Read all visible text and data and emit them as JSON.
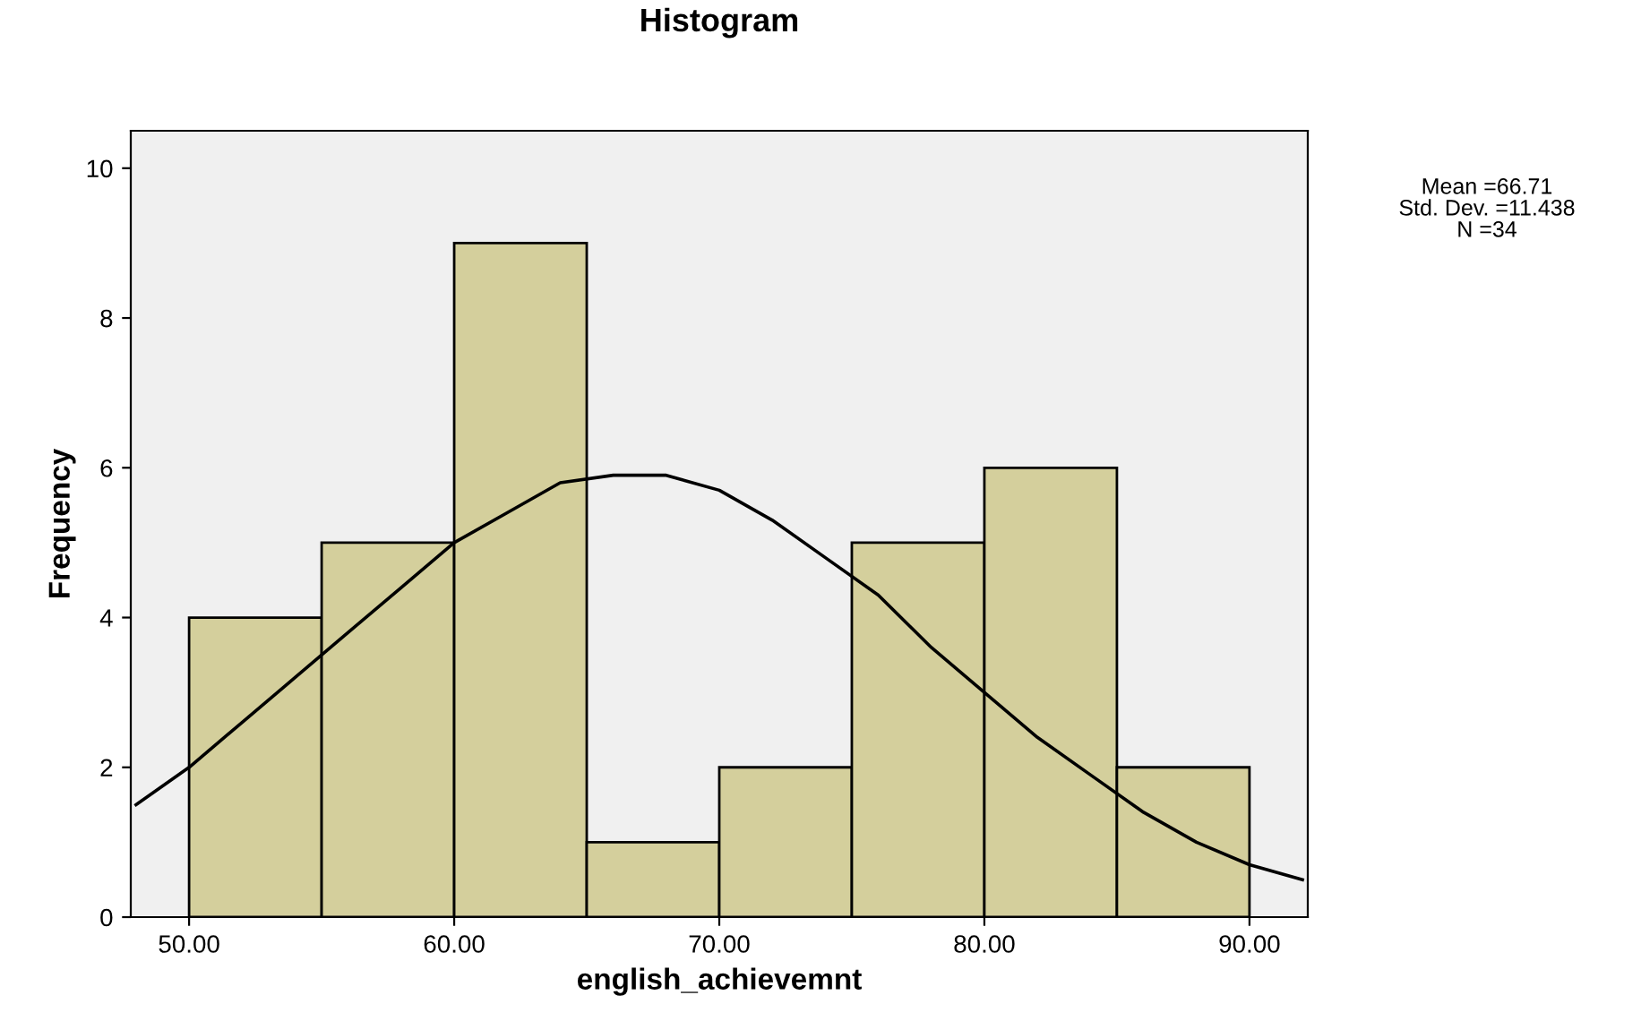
{
  "chart_data": {
    "type": "histogram",
    "title": "Histogram",
    "xlabel": "english_achievemnt",
    "ylabel": "Frequency",
    "bins": [
      50,
      55,
      60,
      65,
      70,
      75,
      80,
      85,
      90
    ],
    "values": [
      4,
      5,
      9,
      1,
      2,
      5,
      6,
      2
    ],
    "color": "#d4cf9c",
    "series": [
      {
        "type": "line",
        "color": "#000000",
        "x": [
          48,
          50,
          52,
          54,
          56,
          58,
          60,
          62,
          64,
          66,
          68,
          70,
          72,
          74,
          76,
          78,
          80,
          82,
          84,
          86,
          88,
          90,
          92
        ],
        "values": [
          1.5,
          2.0,
          2.6,
          3.2,
          3.8,
          4.4,
          5.0,
          5.4,
          5.8,
          5.9,
          5.9,
          5.7,
          5.3,
          4.8,
          4.3,
          3.6,
          3.0,
          2.4,
          1.9,
          1.4,
          1.0,
          0.7,
          0.5
        ]
      }
    ],
    "xlim": [
      47.8,
      92.2
    ],
    "ylim": [
      0,
      10.5
    ],
    "xticks": [
      {
        "value": 50,
        "label": "50.00"
      },
      {
        "value": 60,
        "label": "60.00"
      },
      {
        "value": 70,
        "label": "70.00"
      },
      {
        "value": 80,
        "label": "80.00"
      },
      {
        "value": 90,
        "label": "90.00"
      }
    ],
    "yticks": [
      0,
      2,
      4,
      6,
      8,
      10
    ],
    "annotations": [
      "Mean =66.71",
      "Std. Dev. =11.438",
      "N =34"
    ]
  }
}
